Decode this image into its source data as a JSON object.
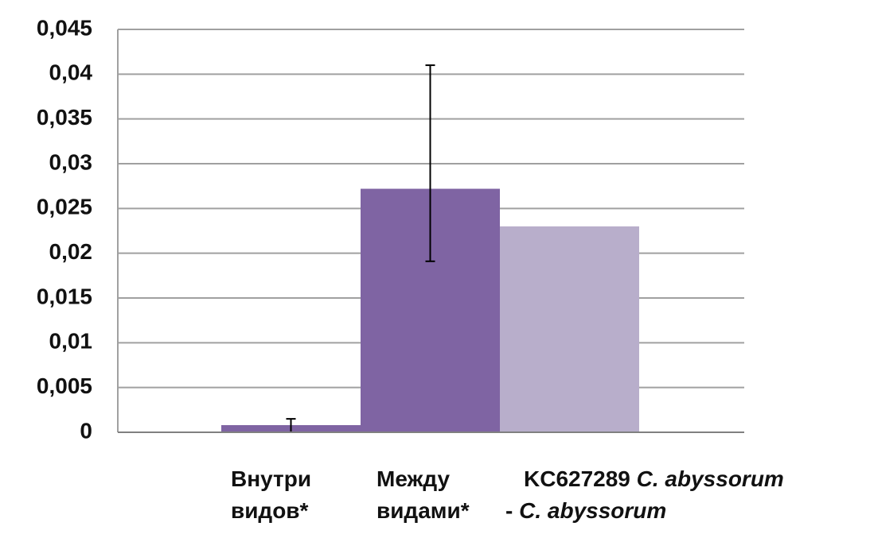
{
  "chart_data": {
    "type": "bar",
    "categories": [
      [
        [
          {
            "text": "Внутри",
            "italic": false
          }
        ],
        [
          {
            "text": "видов*",
            "italic": false
          }
        ]
      ],
      [
        [
          {
            "text": "Между",
            "italic": false
          }
        ],
        [
          {
            "text": "видами*",
            "italic": false
          }
        ]
      ],
      [
        [
          {
            "text": "KC627289 ",
            "italic": false
          },
          {
            "text": "C. abyssorum",
            "italic": true
          }
        ],
        [
          {
            "text": "- ",
            "italic": false
          },
          {
            "text": "C. abyssorum",
            "italic": true
          }
        ]
      ]
    ],
    "values": [
      0.0008,
      0.0272,
      0.023
    ],
    "error_low": [
      0.0008,
      0.0081,
      null
    ],
    "error_high": [
      0.0007,
      0.0138,
      null
    ],
    "colors": [
      "#7f64a3",
      "#7f64a3",
      "#b8aecb"
    ],
    "ylim": [
      0,
      0.045
    ],
    "yticks": [
      0,
      {
        "value": 0.005,
        "label": "0,005"
      },
      {
        "value": 0.01,
        "label": "0,01"
      },
      {
        "value": 0.015,
        "label": "0,015"
      },
      {
        "value": 0.02,
        "label": "0,02"
      },
      {
        "value": 0.025,
        "label": "0,025"
      },
      {
        "value": 0.03,
        "label": "0,03"
      },
      {
        "value": 0.035,
        "label": "0,035"
      },
      {
        "value": 0.04,
        "label": "0,04"
      },
      {
        "value": 0.045,
        "label": "0,045"
      }
    ],
    "grid": true
  }
}
